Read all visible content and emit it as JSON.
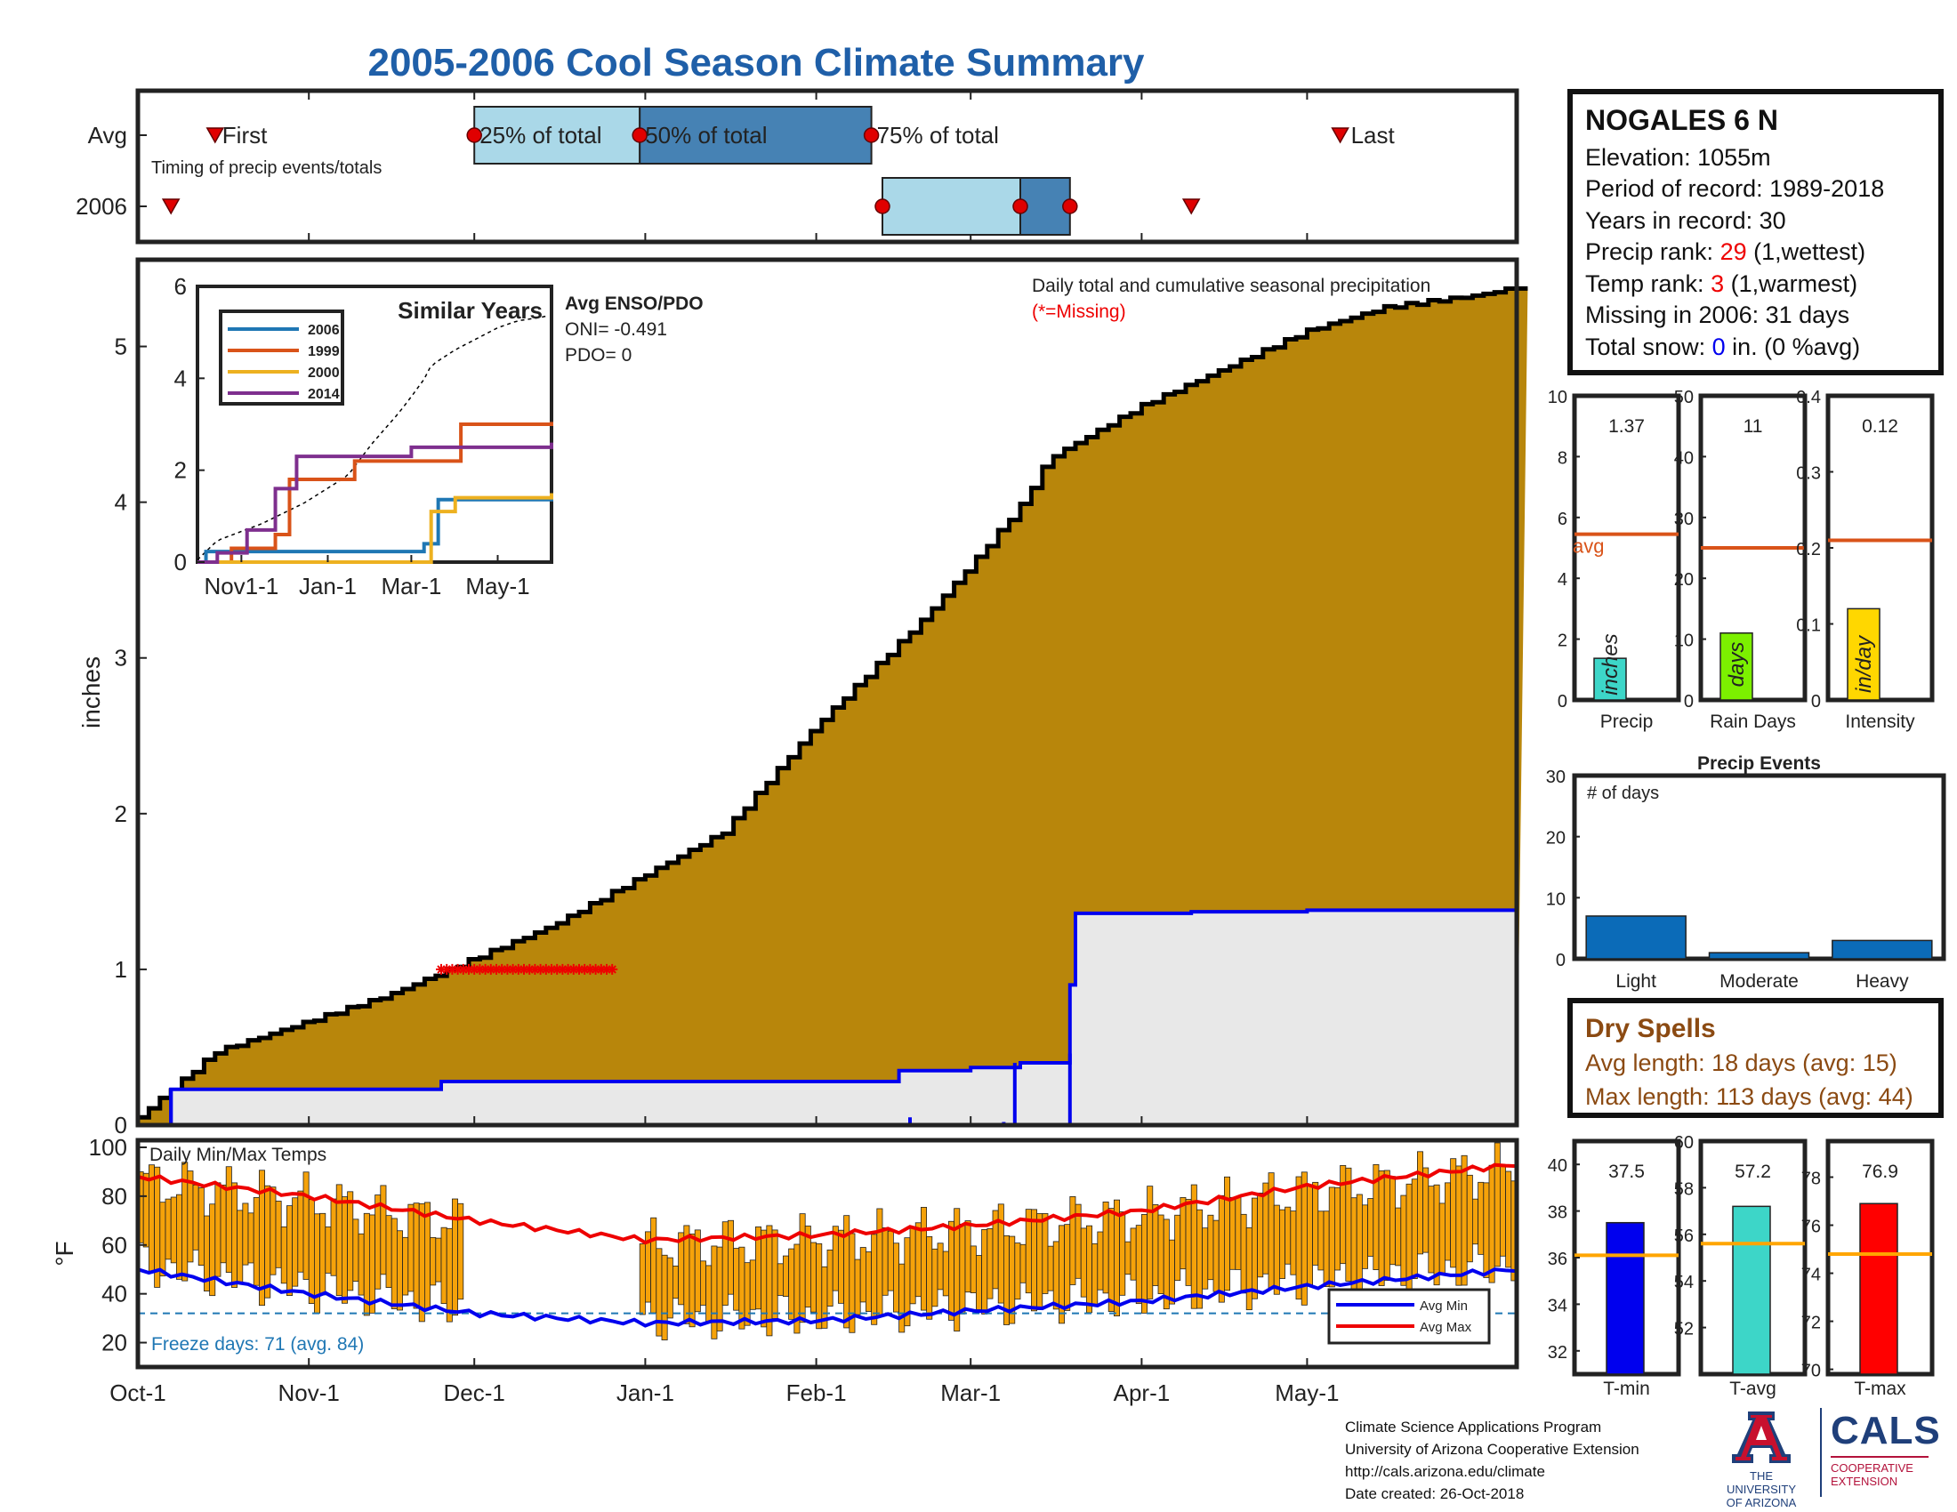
{
  "title": "2005-2006 Cool Season Climate Summary",
  "station": {
    "name": "NOGALES 6 N",
    "elevation": "Elevation: 1055m",
    "period": "Period of record: 1989-2018",
    "years": "Years in record: 30",
    "precip_rank_label": "Precip rank: ",
    "precip_rank_value": "29",
    "precip_rank_note": " (1,wettest)",
    "temp_rank_label": "Temp rank: ",
    "temp_rank_value": "3",
    "temp_rank_note": " (1,warmest)",
    "missing": "Missing in 2006: 31 days",
    "snow_label": "Total snow: ",
    "snow_value": "0",
    "snow_note": " in. (0 %avg)"
  },
  "dry_spells": {
    "header": "Dry Spells",
    "avg_length": "Avg length: 18 days (avg: 15)",
    "max_length": "Max length: 113 days (avg: 44)"
  },
  "footer": {
    "line1": "Climate Science Applications Program",
    "line2": "University of Arizona Cooperative Extension",
    "line3": "http://cals.arizona.edu/climate",
    "line4": " Date created: 26-Oct-2018"
  },
  "logos": {
    "ua_line1": "THE UNIVERSITY",
    "ua_line2": "OF ARIZONA",
    "cals": "CALS",
    "cals_line1": "COOPERATIVE",
    "cals_line2": "EXTENSION"
  },
  "colors": {
    "cumulative_fill": "#b8860b",
    "avg_fill": "#e8e8e8",
    "avg_line": "#0000ee",
    "light_box": "#aad8e8",
    "dark_box": "#4682b4",
    "marker": "#e00000",
    "orange": "#f5a20a",
    "avg_min": "#0000ee",
    "avg_max": "#ee0000",
    "freeze": "#1f77b4"
  },
  "chart_data": [
    {
      "id": "timing",
      "type": "timeline",
      "rows": [
        "Avg",
        "2006"
      ],
      "subtitle": "Timing of precip events/totals",
      "labels": {
        "first": "First",
        "p25": "25% of total",
        "p50": "50% of total",
        "p75": "75% of total",
        "last": "Last"
      },
      "avg": {
        "first": "Oct-15",
        "p25": "Dec-1",
        "p50": "Dec-31",
        "p75": "Feb-11",
        "last": "May-7"
      },
      "y2006": {
        "first": "Oct-7",
        "p25": "Feb-13",
        "p50": "Mar-10",
        "p75": "Mar-19",
        "last": "Apr-10"
      }
    },
    {
      "id": "cumulative",
      "type": "area",
      "title": "Daily total and cumulative seasonal precipitation",
      "missing_note": "(*=Missing)",
      "ylabel": "inches",
      "ylim": [
        0,
        5.5
      ],
      "yticks": [
        0,
        1,
        2,
        3,
        4,
        5
      ],
      "xticks": [
        "Oct-1",
        "Nov-1",
        "Dec-1",
        "Jan-1",
        "Feb-1",
        "Mar-1",
        "Apr-1",
        "May-1"
      ],
      "avg_cumulative": {
        "dates": [
          "Oct-1",
          "Oct-15",
          "Nov-15",
          "Dec-15",
          "Jan-15",
          "Feb-1",
          "Feb-20",
          "Mar-1",
          "Mar-10",
          "Mar-15",
          "Apr-1",
          "May-1",
          "May-15",
          "Jun-1",
          "Jun-8"
        ],
        "values": [
          0.05,
          0.47,
          0.83,
          1.28,
          1.88,
          2.57,
          3.24,
          3.6,
          3.98,
          4.28,
          4.62,
          5.1,
          5.25,
          5.33,
          5.38
        ]
      },
      "cumulative_2006": {
        "dates": [
          "Oct-1",
          "Oct-7",
          "Nov-25",
          "Feb-8",
          "Feb-16",
          "Mar-1",
          "Mar-10",
          "Mar-19",
          "Mar-20",
          "Apr-10",
          "May-1",
          "Jun-8"
        ],
        "values": [
          0.0,
          0.23,
          0.28,
          0.28,
          0.35,
          0.37,
          0.4,
          0.9,
          1.36,
          1.37,
          1.38,
          1.37
        ]
      },
      "missing_days": {
        "start": "Nov-25",
        "end": "Dec-26",
        "value": 1.0
      },
      "enso": {
        "header": "Avg ENSO/PDO",
        "oni": "ONI= -0.491",
        "pdo": "PDO= 0"
      }
    },
    {
      "id": "similar_years",
      "type": "line",
      "title": "Similar Years",
      "ylim": [
        0,
        6
      ],
      "yticks": [
        0,
        2,
        4,
        6
      ],
      "xticks": [
        "Nov1-1",
        "Jan-1",
        "Mar-1",
        "May-1"
      ],
      "series": [
        {
          "name": "2006",
          "color": "#1f77b4",
          "dates": [
            "Oct-1",
            "Oct-7",
            "Mar-10",
            "Mar-20",
            "Jun-8"
          ],
          "values": [
            0.0,
            0.23,
            0.4,
            1.36,
            1.37
          ]
        },
        {
          "name": "1999",
          "color": "#d95319",
          "dates": [
            "Oct-1",
            "Oct-25",
            "Nov-25",
            "Dec-5",
            "Jan-20",
            "Apr-1",
            "Apr-5",
            "Jun-8"
          ],
          "values": [
            0.0,
            0.3,
            0.6,
            1.8,
            2.2,
            2.2,
            3.0,
            3.05
          ]
        },
        {
          "name": "2000",
          "color": "#edb120",
          "dates": [
            "Oct-1",
            "Mar-5",
            "Mar-15",
            "Apr-1",
            "Jun-8"
          ],
          "values": [
            0.0,
            0.0,
            1.1,
            1.4,
            1.5
          ]
        },
        {
          "name": "2014",
          "color": "#7e2f8e",
          "dates": [
            "Oct-1",
            "Oct-15",
            "Nov-5",
            "Nov-25",
            "Dec-10",
            "Jan-1",
            "Mar-1",
            "Jun-8"
          ],
          "values": [
            0.0,
            0.2,
            0.7,
            1.6,
            2.3,
            2.3,
            2.5,
            2.6
          ]
        }
      ],
      "avg_cumulative_dotted": true
    },
    {
      "id": "precip_bars",
      "type": "bar",
      "panels": [
        {
          "xlabel": "Precip",
          "unit": "inches",
          "value": 1.37,
          "avg": 5.45,
          "ylim": [
            0,
            10
          ],
          "yticks": [
            0,
            2,
            4,
            6,
            8,
            10
          ],
          "color": "#3dd6c8",
          "avg_label": "avg"
        },
        {
          "xlabel": "Rain Days",
          "unit": "days",
          "value": 11,
          "avg": 25,
          "ylim": [
            0,
            50
          ],
          "yticks": [
            0,
            10,
            20,
            30,
            40,
            50
          ],
          "color": "#7cf000"
        },
        {
          "xlabel": "Intensity",
          "unit": "in/day",
          "value": 0.12,
          "avg": 0.21,
          "ylim": [
            0,
            0.4
          ],
          "yticks": [
            0,
            0.1,
            0.2,
            0.3,
            0.4
          ],
          "color": "#ffd700"
        }
      ],
      "value_labels": [
        "1.37",
        "11",
        "0.12"
      ]
    },
    {
      "id": "precip_events",
      "type": "bar",
      "title": "Precip Events",
      "ylabel_inset": "# of days",
      "categories": [
        "Light",
        "Moderate",
        "Heavy"
      ],
      "values": [
        7,
        1,
        3
      ],
      "ylim": [
        0,
        30
      ],
      "yticks": [
        0,
        10,
        20,
        30
      ]
    },
    {
      "id": "temps",
      "type": "bar",
      "title": "Daily Min/Max Temps",
      "ylabel": "°F",
      "ylim": [
        10,
        100
      ],
      "yticks": [
        20,
        40,
        60,
        80,
        100
      ],
      "xticks": [
        "Oct-1",
        "Nov-1",
        "Dec-1",
        "Jan-1",
        "Feb-1",
        "Mar-1",
        "Apr-1",
        "May-1"
      ],
      "freeze_line": 32,
      "freeze_text": "Freeze days: 71 (avg. 84)",
      "missing_period": {
        "start": "Nov-29",
        "end": "Dec-31"
      },
      "legend": [
        "Avg Min",
        "Avg Max"
      ],
      "avg_min": {
        "dates": [
          "Oct-1",
          "Nov-1",
          "Dec-1",
          "Jan-1",
          "Feb-1",
          "Mar-1",
          "Apr-1",
          "May-1",
          "Jun-8"
        ],
        "values": [
          50,
          40,
          32,
          28,
          29,
          33,
          37,
          43,
          50
        ]
      },
      "avg_max": {
        "dates": [
          "Oct-1",
          "Nov-1",
          "Dec-1",
          "Jan-1",
          "Feb-1",
          "Mar-1",
          "Apr-1",
          "May-1",
          "Jun-8"
        ],
        "values": [
          88,
          80,
          70,
          62,
          64,
          68,
          74,
          84,
          93
        ]
      },
      "daily_min_typical": [
        [
          48,
          38,
          30,
          26,
          28,
          32,
          35,
          40,
          46
        ]
      ],
      "daily_max_typical": [
        [
          88,
          82,
          75,
          70,
          72,
          78,
          82,
          88,
          92
        ]
      ]
    },
    {
      "id": "temp_summary",
      "type": "bar",
      "panels": [
        {
          "xlabel": "T-min",
          "value": 37.5,
          "avg": 36.1,
          "ylim": [
            31,
            41
          ],
          "yticks": [
            32,
            34,
            36,
            38,
            40
          ],
          "color": "#0000ee"
        },
        {
          "xlabel": "T-avg",
          "value": 57.2,
          "avg": 55.6,
          "ylim": [
            50,
            60
          ],
          "yticks": [
            52,
            54,
            56,
            58,
            60
          ],
          "color": "#3dd6c8"
        },
        {
          "xlabel": "T-max",
          "value": 76.9,
          "avg": 74.8,
          "ylim": [
            69.8,
            79.5
          ],
          "yticks": [
            70,
            72,
            74,
            76,
            78
          ],
          "color": "#ff0000"
        }
      ],
      "value_labels": [
        "37.5",
        "57.2",
        "76.9"
      ]
    }
  ]
}
